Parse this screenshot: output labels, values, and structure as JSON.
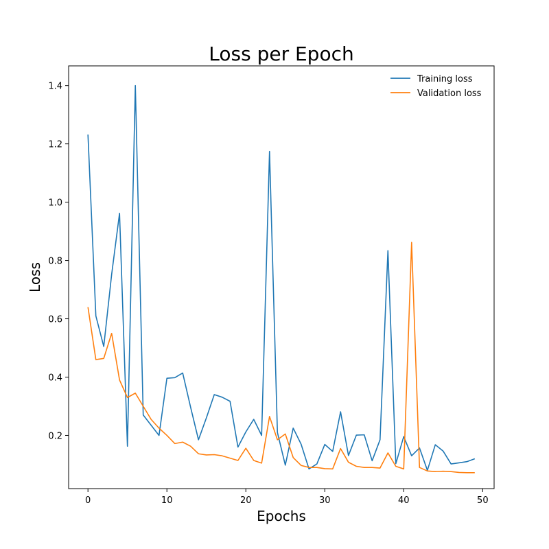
{
  "chart_data": {
    "type": "line",
    "title": "Loss per Epoch",
    "xlabel": "Epochs",
    "ylabel": "Loss",
    "xlim": [
      -2.45,
      51.45
    ],
    "ylim": [
      0.0175,
      1.4675
    ],
    "xticks": [
      0,
      10,
      20,
      30,
      40,
      50
    ],
    "yticks": [
      0.2,
      0.4,
      0.6,
      0.8,
      1.0,
      1.2,
      1.4
    ],
    "ytick_labels": [
      "0.2",
      "0.4",
      "0.6",
      "0.8",
      "1.0",
      "1.2",
      "1.4"
    ],
    "grid": false,
    "legend_position": "top-right",
    "x": [
      0,
      1,
      2,
      3,
      4,
      5,
      6,
      7,
      8,
      9,
      10,
      11,
      12,
      13,
      14,
      15,
      16,
      17,
      18,
      19,
      20,
      21,
      22,
      23,
      24,
      25,
      26,
      27,
      28,
      29,
      30,
      31,
      32,
      33,
      34,
      35,
      36,
      37,
      38,
      39,
      40,
      41,
      42,
      43,
      44,
      45,
      46,
      47,
      48,
      49
    ],
    "series": [
      {
        "name": "Training loss",
        "color": "#1f77b4",
        "values": [
          1.232,
          0.61,
          0.505,
          0.752,
          0.962,
          0.163,
          1.4,
          0.27,
          0.235,
          0.2,
          0.396,
          0.398,
          0.414,
          0.297,
          0.185,
          0.26,
          0.34,
          0.331,
          0.317,
          0.16,
          0.212,
          0.255,
          0.2,
          1.174,
          0.21,
          0.098,
          0.225,
          0.17,
          0.085,
          0.102,
          0.169,
          0.145,
          0.281,
          0.131,
          0.201,
          0.202,
          0.113,
          0.185,
          0.834,
          0.103,
          0.196,
          0.13,
          0.157,
          0.08,
          0.168,
          0.146,
          0.102,
          0.106,
          0.11,
          0.12
        ]
      },
      {
        "name": "Validation loss",
        "color": "#ff7f0e",
        "values": [
          0.64,
          0.46,
          0.464,
          0.55,
          0.39,
          0.33,
          0.345,
          0.3,
          0.255,
          0.225,
          0.2,
          0.172,
          0.177,
          0.163,
          0.137,
          0.133,
          0.134,
          0.13,
          0.122,
          0.114,
          0.156,
          0.114,
          0.105,
          0.265,
          0.185,
          0.205,
          0.124,
          0.097,
          0.09,
          0.09,
          0.086,
          0.085,
          0.155,
          0.108,
          0.094,
          0.09,
          0.09,
          0.088,
          0.14,
          0.094,
          0.085,
          0.862,
          0.09,
          0.078,
          0.076,
          0.077,
          0.076,
          0.073,
          0.072,
          0.072
        ]
      }
    ]
  }
}
